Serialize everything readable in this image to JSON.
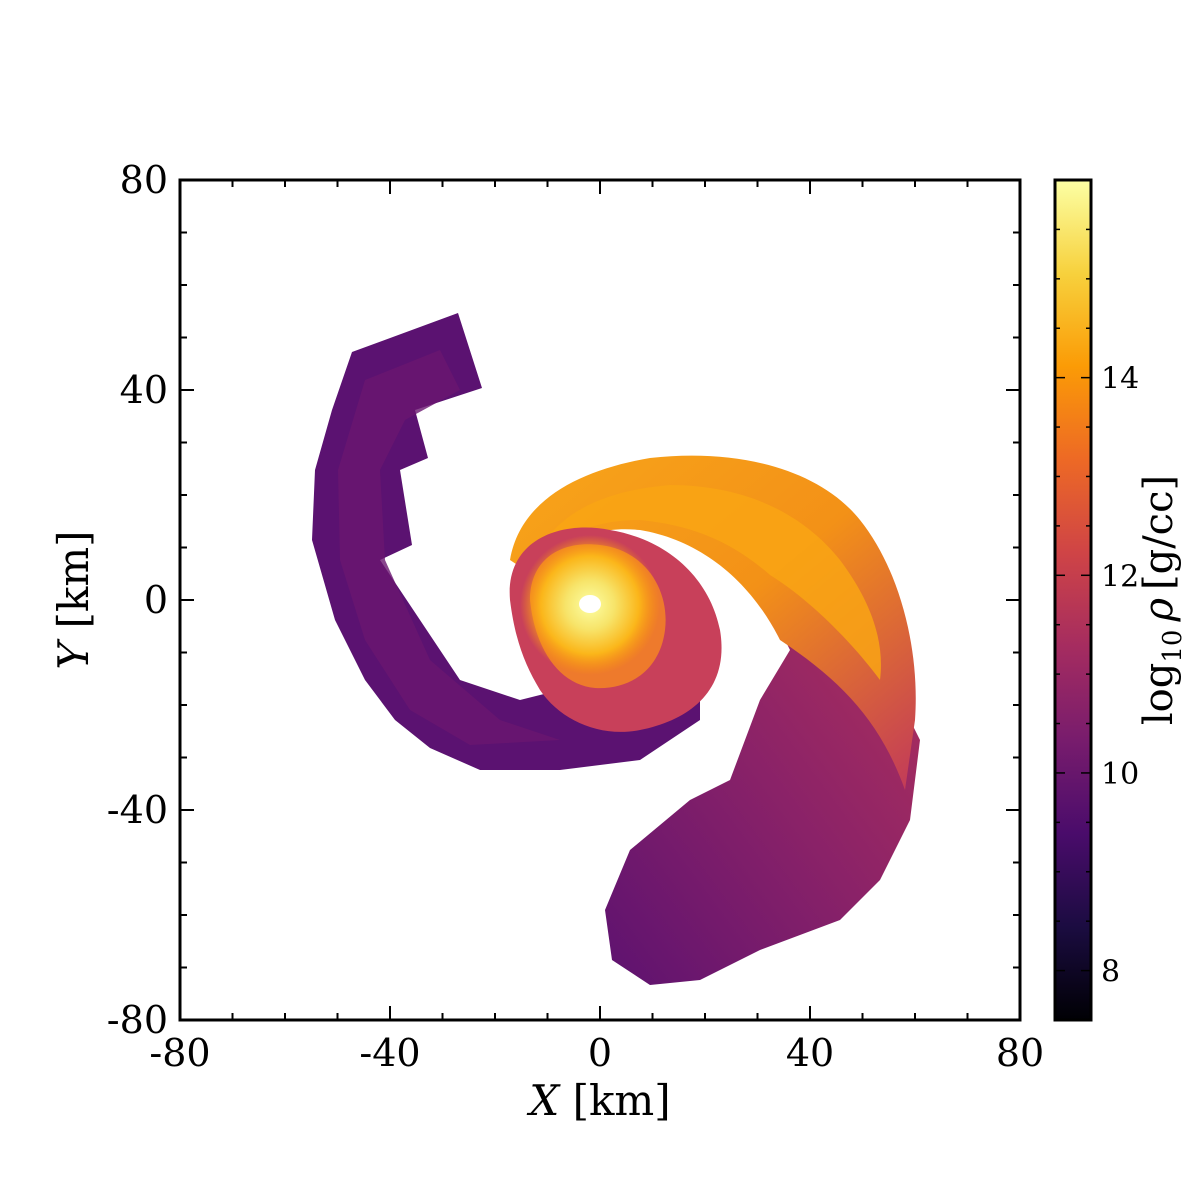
{
  "chart_data": {
    "type": "heatmap",
    "title": "",
    "xlabel": {
      "var": "X",
      "unit": "[km]"
    },
    "ylabel": {
      "var": "Y",
      "unit": "[km]"
    },
    "xlim": [
      -80,
      80
    ],
    "ylim": [
      -80,
      80
    ],
    "xticks": [
      -80,
      -40,
      0,
      40,
      80
    ],
    "yticks": [
      -80,
      -40,
      0,
      40,
      80
    ],
    "xtick_labels": [
      "-80",
      "-40",
      "0",
      "40",
      "80"
    ],
    "ytick_labels": [
      "-80",
      "-40",
      "0",
      "40",
      "80"
    ],
    "grid": false,
    "colorbar": {
      "label": {
        "prefix": "log",
        "subscript": "10",
        "var": "ρ",
        "unit": "[g/cc]"
      },
      "range": [
        7.5,
        16
      ],
      "ticks": [
        8,
        10,
        12,
        14
      ],
      "tick_labels": [
        "8",
        "10",
        "12",
        "14"
      ],
      "colormap": "inferno",
      "stops": [
        "#000004",
        "#1b0c41",
        "#4a0c6b",
        "#781c6d",
        "#a52c60",
        "#cf4446",
        "#ed6925",
        "#fb9b06",
        "#f7d13d",
        "#fcffa4"
      ]
    },
    "features": [
      {
        "name": "core",
        "x": -2,
        "y": 0,
        "log_rho": 15.8
      },
      {
        "name": "inner-arm-upper-right",
        "x": 30,
        "y": 20,
        "log_rho": 14
      },
      {
        "name": "outer-arm-lower-right",
        "x": 35,
        "y": -55,
        "log_rho": 10.5
      },
      {
        "name": "outer-arm-upper-left",
        "x": -40,
        "y": 25,
        "log_rho": 10
      },
      {
        "name": "tail-lower-left",
        "x": -10,
        "y": -30,
        "log_rho": 11
      }
    ]
  }
}
